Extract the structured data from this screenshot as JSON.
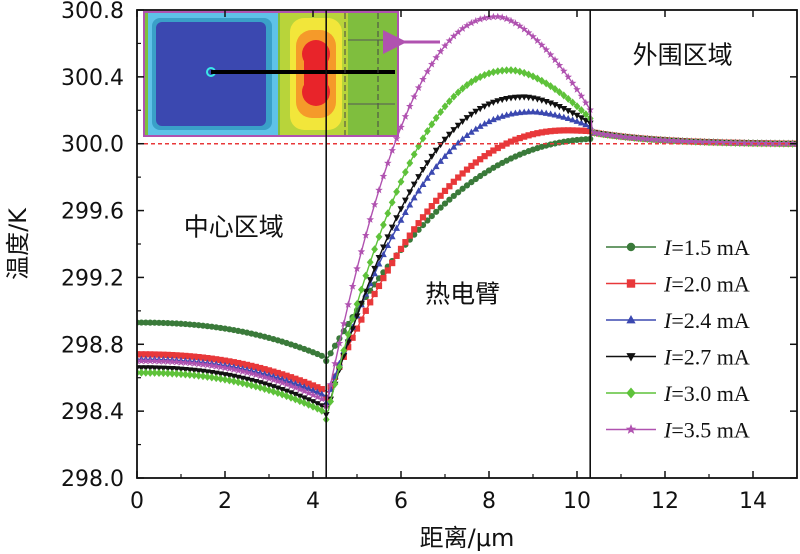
{
  "chart_data": {
    "type": "line",
    "xlabel": "距离/μm",
    "ylabel": "温度/K",
    "xlim": [
      0,
      15
    ],
    "ylim": [
      298.0,
      300.8
    ],
    "xticks": [
      0,
      2,
      4,
      6,
      8,
      10,
      12,
      14
    ],
    "yticks": [
      "298.0",
      "298.4",
      "298.8",
      "299.2",
      "299.6",
      "300.0",
      "300.4",
      "300.8"
    ],
    "reference_line_y": 300.0,
    "boundaries_x": [
      4.3,
      10.3
    ],
    "regions": [
      {
        "label": "中心区域",
        "x": 2.2,
        "y": 299.45
      },
      {
        "label": "热电臂",
        "x": 7.4,
        "y": 299.05
      },
      {
        "label": "外围区域",
        "x": 12.4,
        "y": 300.48
      }
    ],
    "inset": "thermal-map",
    "series": [
      {
        "name": "1.5 mA",
        "current": 1.5,
        "color": "#3a7a3a",
        "marker": "circle",
        "center_start": 298.93,
        "center_end": 298.72,
        "arm_start": 298.7,
        "peak_x": 10.6,
        "peak": 300.03
      },
      {
        "name": "2.0 mA",
        "current": 2.0,
        "color": "#e8383a",
        "marker": "square",
        "center_start": 298.74,
        "center_end": 298.52,
        "arm_start": 298.48,
        "peak_x": 9.8,
        "peak": 300.08
      },
      {
        "name": "2.4 mA",
        "current": 2.4,
        "color": "#3b48b0",
        "marker": "triangle-up",
        "center_start": 298.71,
        "center_end": 298.49,
        "arm_start": 298.45,
        "peak_x": 9.0,
        "peak": 300.19
      },
      {
        "name": "2.7 mA",
        "current": 2.7,
        "color": "#111111",
        "marker": "triangle-down",
        "center_start": 298.66,
        "center_end": 298.42,
        "arm_start": 298.38,
        "peak_x": 8.8,
        "peak": 300.28
      },
      {
        "name": "3.0 mA",
        "current": 3.0,
        "color": "#5ec23a",
        "marker": "diamond",
        "center_start": 298.63,
        "center_end": 298.39,
        "arm_start": 298.35,
        "peak_x": 8.5,
        "peak": 300.44
      },
      {
        "name": "3.5 mA",
        "current": 3.5,
        "color": "#b052b0",
        "marker": "star",
        "center_start": 298.7,
        "center_end": 298.46,
        "arm_start": 298.43,
        "peak_x": 8.2,
        "peak": 300.76
      }
    ],
    "outer_start": 300.07,
    "outer_end": 300.0
  }
}
